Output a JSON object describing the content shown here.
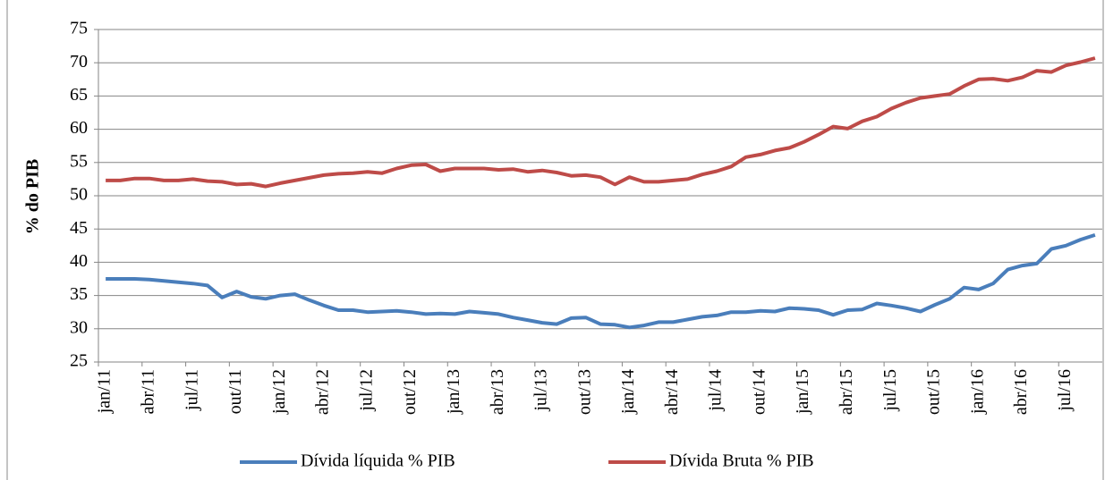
{
  "chart_data": {
    "type": "line",
    "y_label": "% do PIB",
    "categories": [
      "jan/11",
      null,
      null,
      "abr/11",
      null,
      null,
      "jul/11",
      null,
      null,
      "out/11",
      null,
      null,
      "jan/12",
      null,
      null,
      "abr/12",
      null,
      null,
      "jul/12",
      null,
      null,
      "out/12",
      null,
      null,
      "jan/13",
      null,
      null,
      "abr/13",
      null,
      null,
      "jul/13",
      null,
      null,
      "out/13",
      null,
      null,
      "jan/14",
      null,
      null,
      "abr/14",
      null,
      null,
      "jul/14",
      null,
      null,
      "out/14",
      null,
      null,
      "jan/15",
      null,
      null,
      "abr/15",
      null,
      null,
      "jul/15",
      null,
      null,
      "out/15",
      null,
      null,
      "jan/16",
      null,
      null,
      "abr/16",
      null,
      null,
      "jul/16",
      null,
      null
    ],
    "series": [
      {
        "name": "Dívida líquida % PIB",
        "color": "#4a7ebb",
        "values": [
          37.5,
          37.5,
          37.5,
          37.4,
          37.2,
          37.0,
          36.8,
          36.5,
          34.7,
          35.6,
          34.8,
          34.5,
          35.0,
          35.2,
          34.3,
          33.5,
          32.8,
          32.8,
          32.5,
          32.6,
          32.7,
          32.5,
          32.2,
          32.3,
          32.2,
          32.6,
          32.4,
          32.2,
          31.7,
          31.3,
          30.9,
          30.7,
          31.6,
          31.7,
          30.7,
          30.6,
          30.2,
          30.5,
          31.0,
          31.0,
          31.4,
          31.8,
          32.0,
          32.5,
          32.5,
          32.7,
          32.6,
          33.1,
          33.0,
          32.8,
          32.1,
          32.8,
          32.9,
          33.8,
          33.5,
          33.1,
          32.6,
          33.6,
          34.5,
          36.2,
          35.9,
          36.8,
          38.9,
          39.5,
          39.8,
          42.0,
          42.5,
          43.4,
          44.1
        ]
      },
      {
        "name": "Dívida Bruta % PIB",
        "color": "#be4b48",
        "values": [
          52.3,
          52.3,
          52.6,
          52.6,
          52.3,
          52.3,
          52.5,
          52.2,
          52.1,
          51.7,
          51.8,
          51.4,
          51.9,
          52.3,
          52.7,
          53.1,
          53.3,
          53.4,
          53.6,
          53.4,
          54.1,
          54.6,
          54.7,
          53.7,
          54.1,
          54.1,
          54.1,
          53.9,
          54.0,
          53.6,
          53.8,
          53.5,
          53.0,
          53.1,
          52.8,
          51.7,
          52.8,
          52.1,
          52.1,
          52.3,
          52.5,
          53.2,
          53.7,
          54.4,
          55.8,
          56.2,
          56.8,
          57.2,
          58.1,
          59.2,
          60.4,
          60.1,
          61.2,
          61.9,
          63.1,
          64.0,
          64.7,
          65.0,
          65.3,
          66.5,
          67.5,
          67.6,
          67.3,
          67.8,
          68.8,
          68.6,
          69.6,
          70.1,
          70.7
        ]
      }
    ],
    "ylim": [
      25,
      75
    ],
    "yticks": [
      25,
      30,
      35,
      40,
      45,
      50,
      55,
      60,
      65,
      70,
      75
    ],
    "grid": true
  }
}
